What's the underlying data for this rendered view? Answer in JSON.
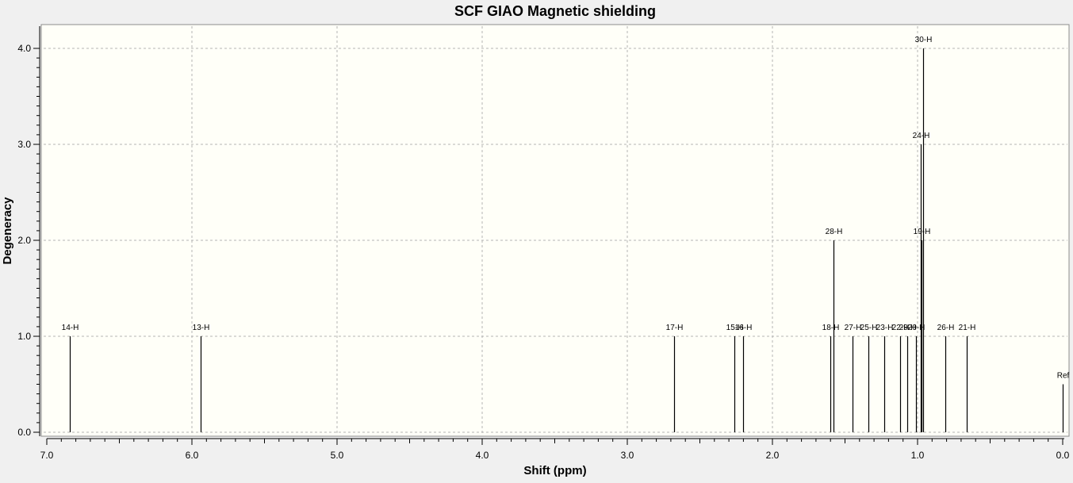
{
  "chart_data": {
    "type": "bar",
    "title": "SCF GIAO Magnetic shielding",
    "xlabel": "Shift (ppm)",
    "ylabel": "Degeneracy",
    "xlim": [
      7.0,
      0.0
    ],
    "ylim": [
      0.0,
      4.2
    ],
    "x_reversed": true,
    "grid": true,
    "x_ticks": [
      "7.0",
      "6.0",
      "5.0",
      "4.0",
      "3.0",
      "2.0",
      "1.0",
      "0.0"
    ],
    "y_ticks": [
      "0.0",
      "1.0",
      "2.0",
      "3.0",
      "4.0"
    ],
    "peaks": [
      {
        "label": "14-H",
        "x": 6.84,
        "y": 1.0
      },
      {
        "label": "13-H",
        "x": 5.94,
        "y": 1.0
      },
      {
        "label": "17-H",
        "x": 2.68,
        "y": 1.0
      },
      {
        "label": "15-H",
        "x": 2.26,
        "y": 1.0
      },
      {
        "label": "16-H",
        "x": 2.2,
        "y": 1.0
      },
      {
        "label": "18-H",
        "x": 1.6,
        "y": 1.0
      },
      {
        "label": "28-H",
        "x": 1.58,
        "y": 2.0
      },
      {
        "label": "27-H",
        "x": 1.45,
        "y": 1.0
      },
      {
        "label": "25-H",
        "x": 1.34,
        "y": 1.0
      },
      {
        "label": "23-H",
        "x": 1.23,
        "y": 1.0
      },
      {
        "label": "22-H",
        "x": 1.12,
        "y": 1.0
      },
      {
        "label": "29-H",
        "x": 1.07,
        "y": 1.0
      },
      {
        "label": "20-H",
        "x": 1.01,
        "y": 1.0
      },
      {
        "label": "24-H",
        "x": 0.98,
        "y": 3.0
      },
      {
        "label": "19-H",
        "x": 0.97,
        "y": 2.0
      },
      {
        "label": "30-H",
        "x": 0.96,
        "y": 4.0
      },
      {
        "label": "26-H",
        "x": 0.81,
        "y": 1.0
      },
      {
        "label": "21-H",
        "x": 0.66,
        "y": 1.0
      },
      {
        "label": "Ref",
        "x": 0.0,
        "y": 0.5
      }
    ]
  },
  "colors": {
    "plot_background": "#fffff8",
    "window_background": "#f0f0f0",
    "grid": "#b4b4b4",
    "peak": "#000000"
  }
}
